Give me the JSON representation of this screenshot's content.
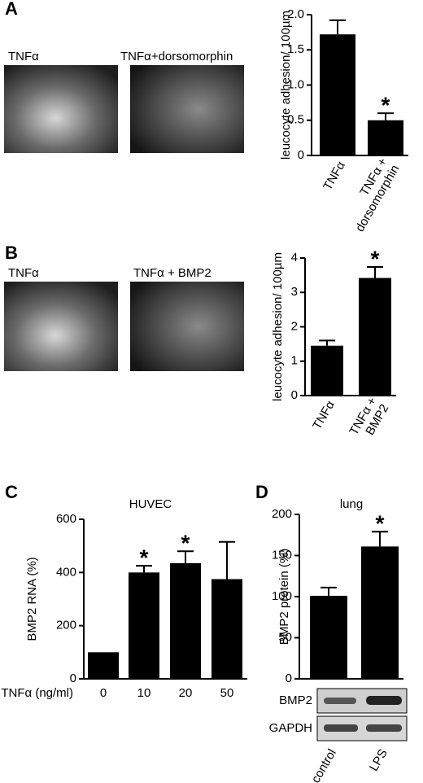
{
  "images": {
    "A": [
      "TNFα",
      "TNFα+dorsomorphin"
    ],
    "B": [
      "TNFα",
      "TNFα + BMP2"
    ]
  },
  "blots": [
    "BMP2",
    "GAPDH"
  ],
  "chart_data": [
    {
      "panel": "A",
      "type": "bar",
      "ylabel": "leucocyte adhesion/ 100µm",
      "categories": [
        "TNFα",
        "TNFα +\ndorsomorphin"
      ],
      "values": [
        1.72,
        0.5
      ],
      "errors": [
        0.2,
        0.1
      ],
      "markers": [
        null,
        "*"
      ],
      "color": "#000000",
      "ylim": [
        0,
        2
      ],
      "yticks": [
        {
          "value": 0,
          "label": "0"
        },
        {
          "value": 0.5,
          "label": "0.5"
        },
        {
          "value": 1,
          "label": "1.0"
        },
        {
          "value": 1.5,
          "label": "1.5"
        },
        {
          "value": 2,
          "label": "2.0"
        }
      ]
    },
    {
      "panel": "B",
      "type": "bar",
      "ylabel": "leucocyte adhesion/ 100µm",
      "categories": [
        "TNFα",
        "TNFα +\nBMP2"
      ],
      "values": [
        1.45,
        3.42
      ],
      "errors": [
        0.15,
        0.32
      ],
      "markers": [
        null,
        "*"
      ],
      "color": "#000000",
      "ylim": [
        0,
        4
      ],
      "yticks": [
        0,
        1,
        2,
        3,
        4
      ]
    },
    {
      "panel": "C",
      "type": "bar",
      "title": "HUVEC",
      "ylabel": "BMP2 RNA (%)",
      "xlabel": "TNFα (ng/ml)",
      "categories": [
        "0",
        "10",
        "20",
        "50"
      ],
      "values": [
        100,
        400,
        435,
        375
      ],
      "errors": [
        null,
        25,
        45,
        140
      ],
      "markers": [
        null,
        "*",
        "*",
        null
      ],
      "color": "#000000",
      "ylim": [
        0,
        600
      ],
      "yticks": [
        0,
        200,
        400,
        600
      ]
    },
    {
      "panel": "D",
      "type": "bar",
      "title": "lung",
      "ylabel": "BMP2 protein (%)",
      "categories": [
        "control",
        "LPS"
      ],
      "values": [
        101,
        161
      ],
      "errors": [
        10,
        18
      ],
      "markers": [
        null,
        "*"
      ],
      "color": "#000000",
      "ylim": [
        0,
        200
      ],
      "yticks": [
        0,
        50,
        100,
        150,
        200
      ]
    }
  ]
}
